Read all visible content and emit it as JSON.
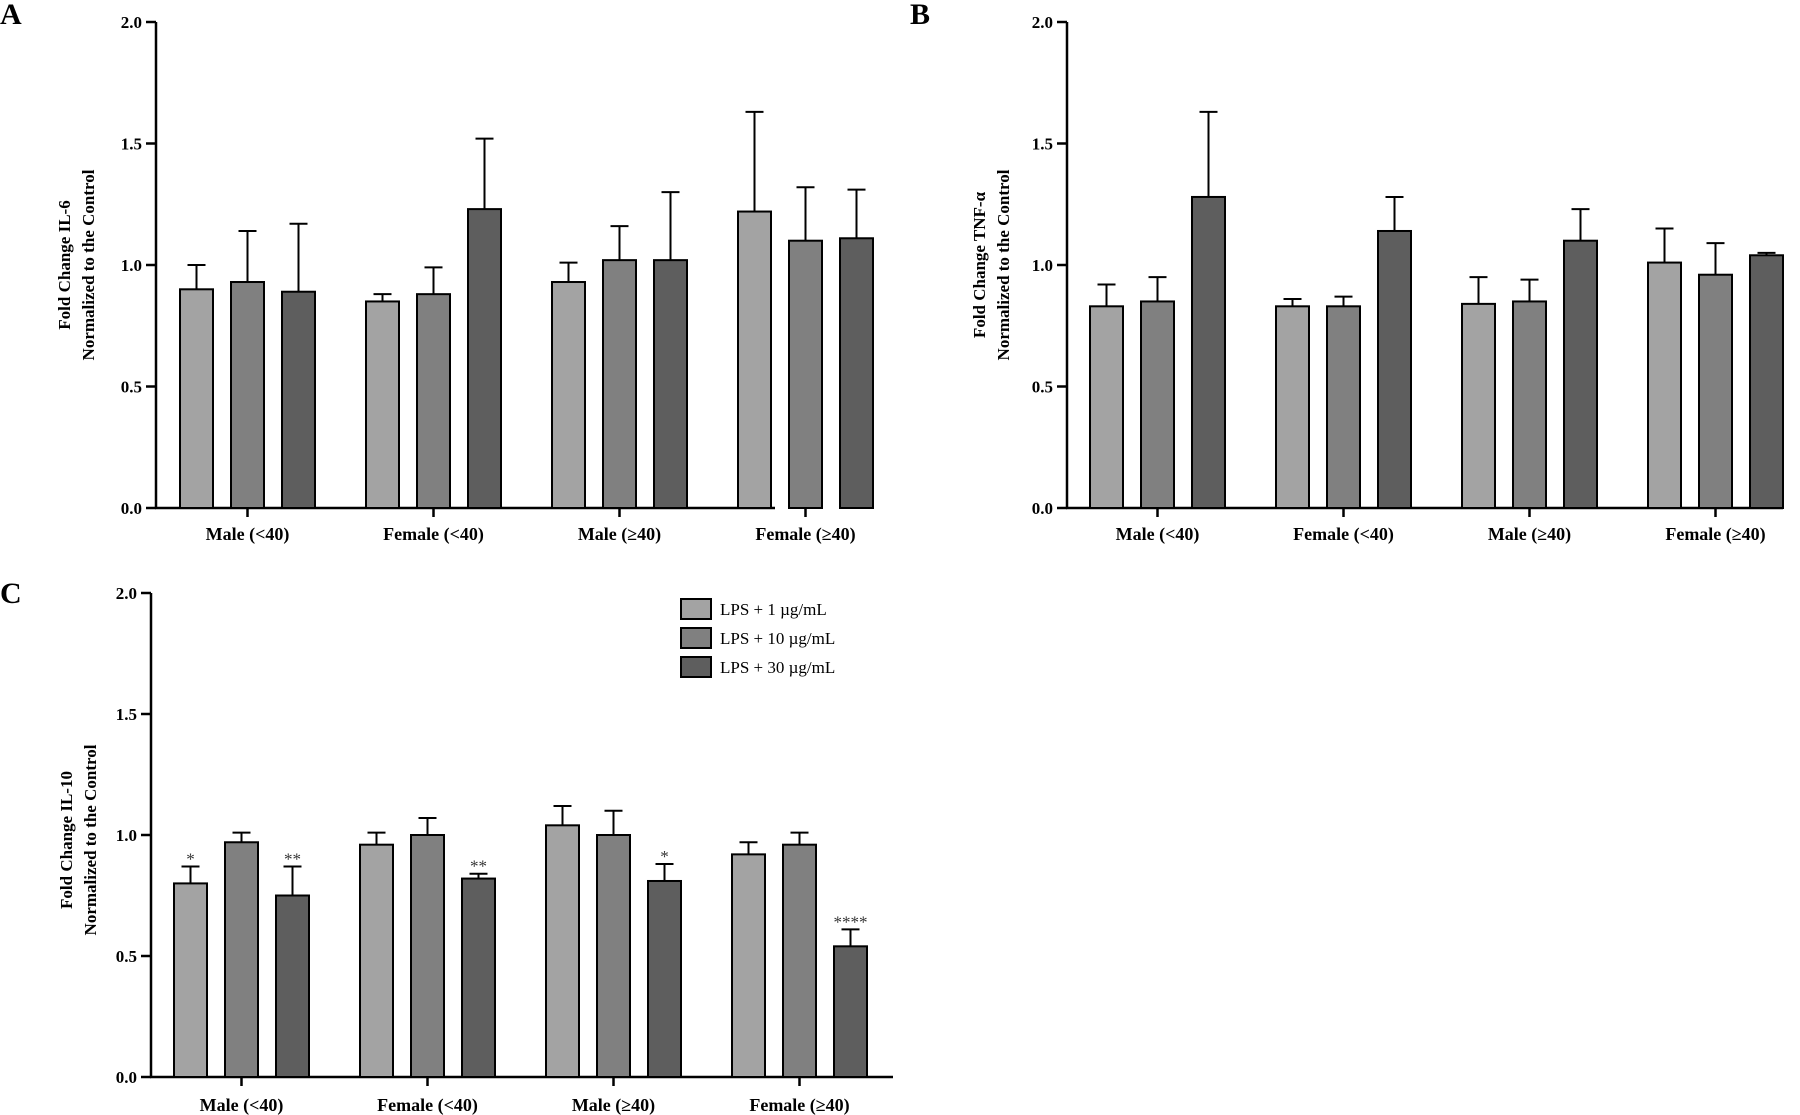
{
  "colors": {
    "series1": "#a3a3a3",
    "series2": "#808080",
    "series3": "#5e5e5e",
    "stroke": "#000000"
  },
  "legend": {
    "items": [
      {
        "label": "LPS + 1 µg/mL"
      },
      {
        "label": "LPS + 10 µg/mL"
      },
      {
        "label": "LPS + 30 µg/mL"
      }
    ]
  },
  "chart_data": [
    {
      "panel": "A",
      "type": "bar",
      "ylabel": [
        "Fold Change IL-6",
        "Normalized to the Control"
      ],
      "ylim": [
        0,
        2.0
      ],
      "yticks": [
        "0.0",
        "0.5",
        "1.0",
        "1.5",
        "2.0"
      ],
      "categories": [
        "Male (<40)",
        "Female (<40)",
        "Male (≥40)",
        "Female (≥40)"
      ],
      "series": [
        {
          "name": "LPS + 1 µg/mL",
          "values": [
            0.9,
            0.85,
            0.93,
            1.22
          ],
          "errors": [
            0.1,
            0.03,
            0.08,
            0.41
          ],
          "sig": [
            "",
            "",
            "",
            ""
          ]
        },
        {
          "name": "LPS + 10 µg/mL",
          "values": [
            0.93,
            0.88,
            1.02,
            1.1
          ],
          "errors": [
            0.21,
            0.11,
            0.14,
            0.22
          ],
          "sig": [
            "",
            "",
            "",
            ""
          ]
        },
        {
          "name": "LPS + 30 µg/mL",
          "values": [
            0.89,
            1.23,
            1.02,
            1.11
          ],
          "errors": [
            0.28,
            0.29,
            0.28,
            0.2
          ],
          "sig": [
            "",
            "",
            "",
            ""
          ]
        }
      ]
    },
    {
      "panel": "B",
      "type": "bar",
      "ylabel": [
        "Fold Change TNF-α",
        "Normalized to the Control"
      ],
      "ylim": [
        0,
        2.0
      ],
      "yticks": [
        "0.0",
        "0.5",
        "1.0",
        "1.5",
        "2.0"
      ],
      "categories": [
        "Male (<40)",
        "Female (<40)",
        "Male (≥40)",
        "Female (≥40)"
      ],
      "series": [
        {
          "name": "LPS + 1 µg/mL",
          "values": [
            0.83,
            0.83,
            0.84,
            1.01
          ],
          "errors": [
            0.09,
            0.03,
            0.11,
            0.14
          ],
          "sig": [
            "",
            "",
            "",
            ""
          ]
        },
        {
          "name": "LPS + 10 µg/mL",
          "values": [
            0.85,
            0.83,
            0.85,
            0.96
          ],
          "errors": [
            0.1,
            0.04,
            0.09,
            0.13
          ],
          "sig": [
            "",
            "",
            "",
            ""
          ]
        },
        {
          "name": "LPS + 30 µg/mL",
          "values": [
            1.28,
            1.14,
            1.1,
            1.04
          ],
          "errors": [
            0.35,
            0.14,
            0.13,
            0.01
          ],
          "sig": [
            "",
            "",
            "",
            ""
          ]
        }
      ]
    },
    {
      "panel": "C",
      "type": "bar",
      "ylabel": [
        "Fold Change IL-10",
        "Normalized to the Control"
      ],
      "ylim": [
        0,
        2.0
      ],
      "yticks": [
        "0.0",
        "0.5",
        "1.0",
        "1.5",
        "2.0"
      ],
      "categories": [
        "Male (<40)",
        "Female (<40)",
        "Male (≥40)",
        "Female (≥40)"
      ],
      "series": [
        {
          "name": "LPS + 1 µg/mL",
          "values": [
            0.8,
            0.96,
            1.04,
            0.92
          ],
          "errors": [
            0.07,
            0.05,
            0.08,
            0.05
          ],
          "sig": [
            "*",
            "",
            "",
            ""
          ]
        },
        {
          "name": "LPS + 10 µg/mL",
          "values": [
            0.97,
            1.0,
            1.0,
            0.96
          ],
          "errors": [
            0.04,
            0.07,
            0.1,
            0.05
          ],
          "sig": [
            "",
            "",
            "",
            ""
          ]
        },
        {
          "name": "LPS + 30 µg/mL",
          "values": [
            0.75,
            0.82,
            0.81,
            0.54
          ],
          "errors": [
            0.12,
            0.02,
            0.07,
            0.07
          ],
          "sig": [
            "**",
            "**",
            "*",
            "****"
          ]
        }
      ]
    }
  ]
}
